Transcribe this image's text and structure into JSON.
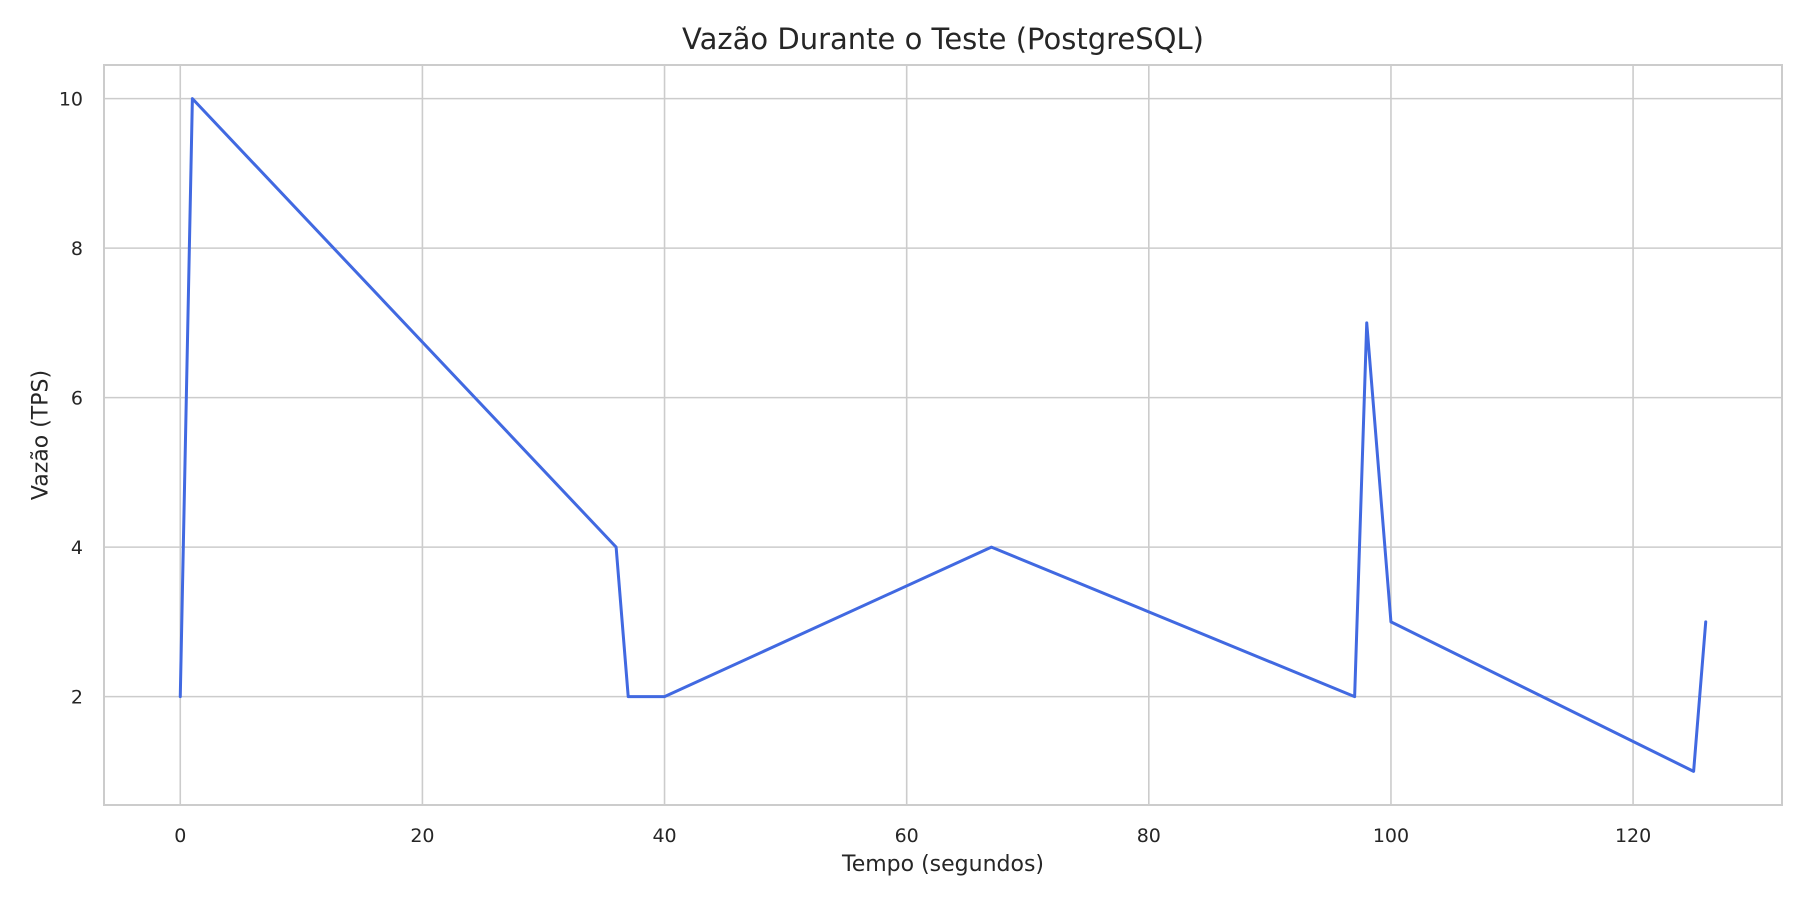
{
  "chart_data": {
    "type": "line",
    "title": "Vazão Durante o Teste (PostgreSQL)",
    "xlabel": "Tempo (segundos)",
    "ylabel": "Vazão (TPS)",
    "xlim": [
      -6.3,
      132.3
    ],
    "ylim": [
      0.55,
      10.45
    ],
    "x_ticks": [
      0,
      20,
      40,
      60,
      80,
      100,
      120
    ],
    "y_ticks": [
      2,
      4,
      6,
      8,
      10
    ],
    "grid": true,
    "series": [
      {
        "color": "#4169e1",
        "x": [
          0,
          1,
          36,
          37,
          40,
          67,
          97,
          98,
          100,
          125,
          126
        ],
        "y": [
          2,
          10,
          4,
          2,
          2,
          4,
          2,
          7,
          3,
          1,
          3
        ]
      }
    ]
  }
}
